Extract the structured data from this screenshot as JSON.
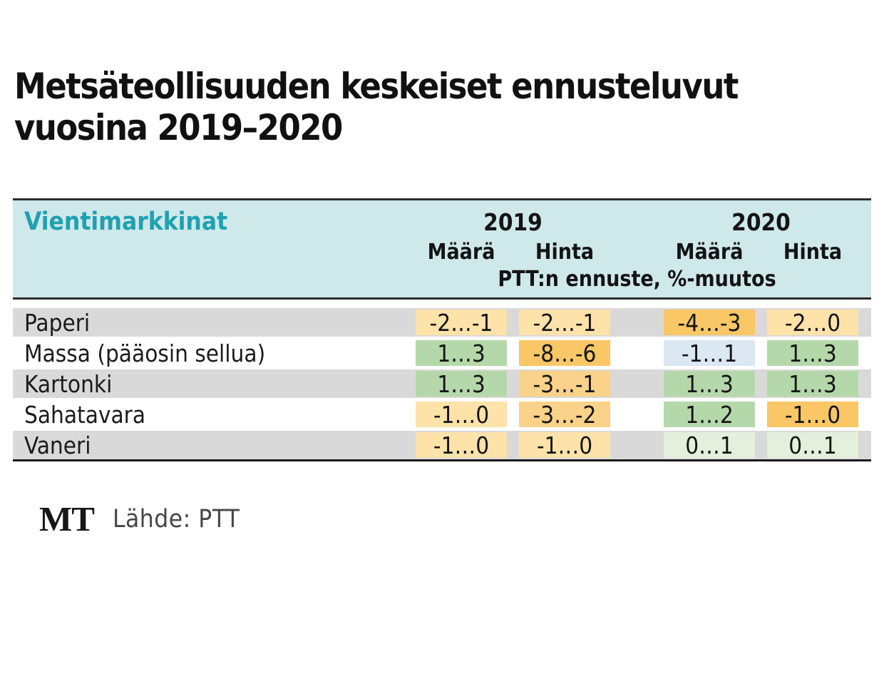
{
  "title": {
    "line1": "Metsäteollisuuden keskeiset ennusteluvut",
    "line2": "vuosina 2019–2020"
  },
  "table": {
    "corner_label": "Vientimarkkinat",
    "years": [
      "2019",
      "2020"
    ],
    "subheaders": [
      "Määrä",
      "Hinta",
      "Määrä",
      "Hinta"
    ],
    "note": "PTT:n ennuste, %-muutos",
    "rows": [
      {
        "label": "Paperi",
        "values": [
          "-2…-1",
          "-2…-1",
          "-4…-3",
          "-2…0"
        ],
        "cell_colors": [
          "light_orange",
          "light_orange",
          "orange",
          "light_orange"
        ]
      },
      {
        "label": "Massa (pääosin sellua)",
        "values": [
          "1…3",
          "-8…-6",
          "-1…1",
          "1…3"
        ],
        "cell_colors": [
          "green",
          "orange",
          "blue",
          "green"
        ]
      },
      {
        "label": "Kartonki",
        "values": [
          "1…3",
          "-3…-1",
          "1…3",
          "1…3"
        ],
        "cell_colors": [
          "green",
          "medium_orange",
          "green",
          "green"
        ]
      },
      {
        "label": "Sahatavara",
        "values": [
          "-1…0",
          "-3…-2",
          "1…2",
          "-1…0"
        ],
        "cell_colors": [
          "light_orange",
          "medium_orange",
          "green",
          "orange"
        ]
      },
      {
        "label": "Vaneri",
        "values": [
          "-1…0",
          "-1…0",
          "0…1",
          "0…1"
        ],
        "cell_colors": [
          "light_orange",
          "light_orange",
          "pale_green",
          "pale_green"
        ]
      }
    ]
  },
  "chart_data": {
    "type": "table",
    "title": "Metsäteollisuuden keskeiset ennusteluvut vuosina 2019–2020",
    "section": "Vientimarkkinat",
    "subtitle": "PTT:n ennuste, %-muutos",
    "columns": [
      "2019 Määrä",
      "2019 Hinta",
      "2020 Määrä",
      "2020 Hinta"
    ],
    "rows": [
      {
        "label": "Paperi",
        "values": [
          "-2…-1",
          "-2…-1",
          "-4…-3",
          "-2…0"
        ]
      },
      {
        "label": "Massa (pääosin sellua)",
        "values": [
          "1…3",
          "-8…-6",
          "-1…1",
          "1…3"
        ]
      },
      {
        "label": "Kartonki",
        "values": [
          "1…3",
          "-3…-1",
          "1…3",
          "1…3"
        ]
      },
      {
        "label": "Sahatavara",
        "values": [
          "-1…0",
          "-3…-2",
          "1…2",
          "-1…0"
        ]
      },
      {
        "label": "Vaneri",
        "values": [
          "-1…0",
          "-1…0",
          "0…1",
          "0…1"
        ]
      }
    ],
    "source": "Lähde: PTT"
  },
  "footer": {
    "logo": "MT",
    "source": "Lähde: PTT"
  },
  "colors": {
    "header_bg": "#cfe8ea",
    "accent_teal": "#1fa1b0",
    "row_alt_bg": "#d9d9d9",
    "light_orange": "#fde2aa",
    "medium_orange": "#fbd289",
    "orange": "#f9c766",
    "green": "#b5d8aa",
    "pale_green": "#e4efdc",
    "blue": "#dbe7f2"
  }
}
